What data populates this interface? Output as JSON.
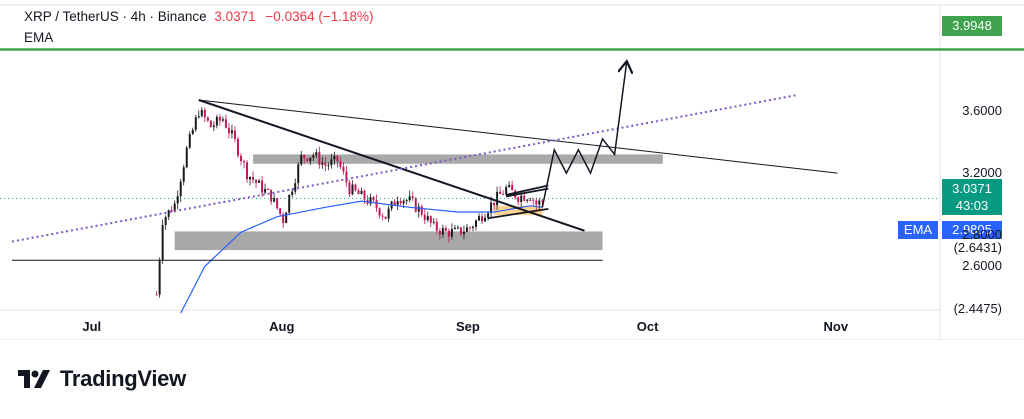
{
  "header": {
    "symbol": "XRP / TetherUS · 4h · Binance",
    "price": "3.0371",
    "change": "−0.0364 (−1.18%)",
    "indicator": "EMA"
  },
  "tags": {
    "target": "3.9948",
    "last_price": "3.0371",
    "countdown": "43:03",
    "ema_name": "EMA",
    "ema_value": "2.9805"
  },
  "colors": {
    "target_line": "#3fa34d",
    "last_price_tag": "#089981",
    "ema": "#2962ff",
    "candle_up": "#1a1a1a",
    "candle_down": "#c2185b",
    "zone_gray": "#9e9e9e",
    "zone_orange": "#ffcc80",
    "dotted_trend": "#7e57c2"
  },
  "brand": {
    "name": "TradingView",
    "logo_icon": "tradingview-logo-icon"
  },
  "chart_data": {
    "type": "candlestick",
    "title": "XRP / TetherUS · 4h · Binance",
    "x_tick_labels": [
      "Jul",
      "Aug",
      "Sep",
      "Oct",
      "Nov"
    ],
    "x_tick_positions_days": [
      0,
      31,
      62,
      92,
      123
    ],
    "y_tick_labels": [
      "3.6000",
      "3.2000",
      "2.8000",
      "2.6000"
    ],
    "y_ticks": [
      3.6,
      3.2,
      2.8,
      2.6
    ],
    "ylim": [
      2.32,
      4.12
    ],
    "xlim_days": [
      -14,
      140
    ],
    "price_labels": [
      "(2.6431)",
      "(2.4475)"
    ],
    "last_price": 3.0371,
    "ema_value": 2.9805,
    "target_level": 3.9948,
    "close_path": [
      {
        "day": 10,
        "price": 2.42
      },
      {
        "day": 11,
        "price": 2.9
      },
      {
        "day": 13,
        "price": 3.0
      },
      {
        "day": 15,
        "price": 3.35
      },
      {
        "day": 17,
        "price": 3.6
      },
      {
        "day": 19,
        "price": 3.5
      },
      {
        "day": 21,
        "price": 3.55
      },
      {
        "day": 23,
        "price": 3.4
      },
      {
        "day": 25,
        "price": 3.2
      },
      {
        "day": 27,
        "price": 3.12
      },
      {
        "day": 29,
        "price": 3.05
      },
      {
        "day": 31,
        "price": 2.9
      },
      {
        "day": 32,
        "price": 3.05
      },
      {
        "day": 34,
        "price": 3.3
      },
      {
        "day": 36,
        "price": 3.32
      },
      {
        "day": 38,
        "price": 3.25
      },
      {
        "day": 40,
        "price": 3.28
      },
      {
        "day": 42,
        "price": 3.1
      },
      {
        "day": 44,
        "price": 3.05
      },
      {
        "day": 46,
        "price": 3.0
      },
      {
        "day": 48,
        "price": 2.92
      },
      {
        "day": 50,
        "price": 3.05
      },
      {
        "day": 52,
        "price": 3.02
      },
      {
        "day": 54,
        "price": 2.95
      },
      {
        "day": 56,
        "price": 2.85
      },
      {
        "day": 58,
        "price": 2.82
      },
      {
        "day": 60,
        "price": 2.82
      },
      {
        "day": 62,
        "price": 2.85
      },
      {
        "day": 64,
        "price": 2.93
      },
      {
        "day": 66,
        "price": 3.02
      },
      {
        "day": 68,
        "price": 3.1
      },
      {
        "day": 70,
        "price": 3.05
      },
      {
        "day": 72,
        "price": 3.06
      },
      {
        "day": 73,
        "price": 3.0
      },
      {
        "day": 74,
        "price": 3.02
      }
    ],
    "ema_path": [
      {
        "day": 14,
        "price": 2.3
      },
      {
        "day": 18,
        "price": 2.6
      },
      {
        "day": 24,
        "price": 2.82
      },
      {
        "day": 30,
        "price": 2.92
      },
      {
        "day": 38,
        "price": 2.98
      },
      {
        "day": 44,
        "price": 3.02
      },
      {
        "day": 52,
        "price": 2.98
      },
      {
        "day": 60,
        "price": 2.95
      },
      {
        "day": 66,
        "price": 2.95
      },
      {
        "day": 72,
        "price": 2.99
      },
      {
        "day": 74,
        "price": 2.9805
      }
    ],
    "zones": [
      {
        "day_start": 26,
        "day_end": 94,
        "price_top": 3.32,
        "price_bottom": 3.26
      },
      {
        "day_start": 13,
        "day_end": 84,
        "price_top": 2.825,
        "price_bottom": 2.705
      },
      {
        "day_start": 66,
        "day_end": 74,
        "price_top": 2.99,
        "price_bottom": 2.93
      }
    ],
    "trendlines": [
      {
        "from": {
          "day": 17,
          "price": 3.67
        },
        "to": {
          "day": 123,
          "price": 3.2
        }
      },
      {
        "from": {
          "day": 17,
          "price": 3.67
        },
        "to": {
          "day": 81,
          "price": 2.83
        }
      },
      {
        "from": {
          "day": -14,
          "price": 2.76
        },
        "to": {
          "day": 116,
          "price": 3.7
        }
      },
      {
        "from": {
          "day": -14,
          "price": 2.64
        },
        "to": {
          "day": 84,
          "price": 2.64
        }
      },
      {
        "from": {
          "day": 68,
          "price": 3.06
        },
        "to": {
          "day": 75,
          "price": 3.12
        }
      },
      {
        "from": {
          "day": 68,
          "price": 3.05
        },
        "to": {
          "day": 75,
          "price": 3.1
        }
      },
      {
        "from": {
          "day": 65,
          "price": 2.91
        },
        "to": {
          "day": 75,
          "price": 2.97
        }
      }
    ],
    "projection_path": [
      {
        "day": 74,
        "price": 2.98
      },
      {
        "day": 76,
        "price": 3.35
      },
      {
        "day": 78,
        "price": 3.2
      },
      {
        "day": 80,
        "price": 3.35
      },
      {
        "day": 82,
        "price": 3.2
      },
      {
        "day": 84,
        "price": 3.42
      },
      {
        "day": 86,
        "price": 3.32
      },
      {
        "day": 88,
        "price": 3.91
      }
    ]
  }
}
